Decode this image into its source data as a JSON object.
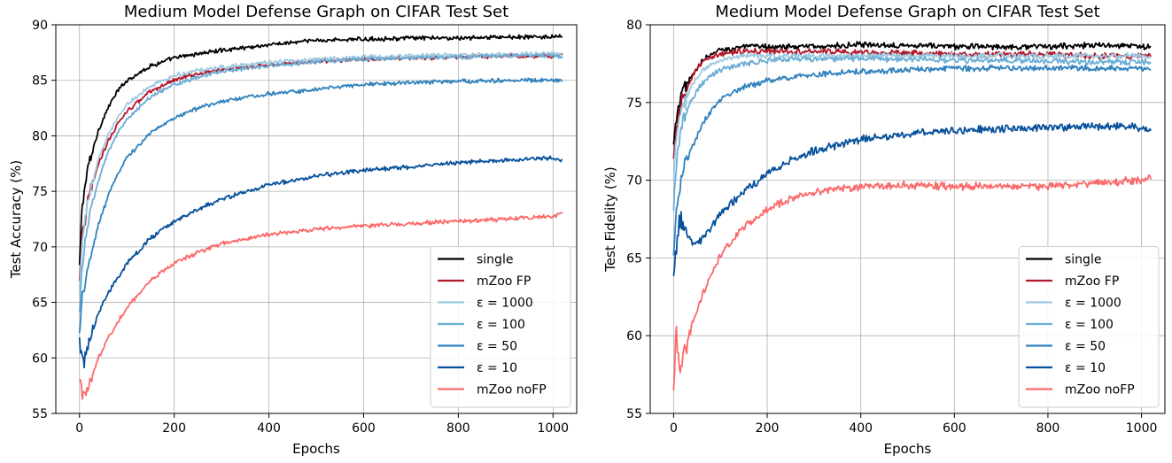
{
  "figure": {
    "left_title": "Medium Model Defense Graph on CIFAR Test Set",
    "right_title": "Medium Model Defense Graph on CIFAR Test Set"
  },
  "chart_data": [
    {
      "type": "line",
      "title": "Medium Model Defense Graph on CIFAR Test Set",
      "xlabel": "Epochs",
      "ylabel": "Test Accuracy (%)",
      "xlim": [
        -50,
        1050
      ],
      "ylim": [
        55,
        90
      ],
      "xticks": [
        0,
        200,
        400,
        600,
        800,
        1000
      ],
      "yticks": [
        55,
        60,
        65,
        70,
        75,
        80,
        85,
        90
      ],
      "grid": true,
      "legend_position": "lower right",
      "series": [
        {
          "name": "single",
          "color": "#000000",
          "x": [
            0,
            5,
            10,
            20,
            40,
            60,
            80,
            100,
            150,
            200,
            250,
            300,
            400,
            500,
            600,
            700,
            800,
            900,
            1000,
            1020
          ],
          "y": [
            68,
            73.5,
            75,
            77.5,
            80.5,
            82.5,
            84,
            85,
            86.3,
            87,
            87.4,
            87.7,
            88.2,
            88.6,
            88.7,
            88.8,
            88.8,
            88.9,
            88.9,
            88.9
          ]
        },
        {
          "name": "mZoo FP",
          "color": "#b2182b",
          "x": [
            0,
            5,
            10,
            20,
            40,
            60,
            80,
            100,
            150,
            200,
            250,
            300,
            400,
            500,
            600,
            700,
            800,
            900,
            1000,
            1020
          ],
          "y": [
            67,
            70.5,
            72,
            74.5,
            77.5,
            79.5,
            81,
            82.2,
            84,
            85,
            85.6,
            86,
            86.4,
            86.7,
            86.9,
            87,
            87.1,
            87.2,
            87.2,
            87.3
          ]
        },
        {
          "name": "ε = 1000",
          "color": "#9ecae1",
          "x": [
            0,
            5,
            10,
            20,
            40,
            60,
            80,
            100,
            150,
            200,
            250,
            300,
            400,
            500,
            600,
            700,
            800,
            900,
            1000,
            1020
          ],
          "y": [
            66,
            70,
            72,
            74.5,
            77.8,
            80,
            81.6,
            82.8,
            84.5,
            85.4,
            85.9,
            86.2,
            86.6,
            86.9,
            87.1,
            87.2,
            87.3,
            87.3,
            87.4,
            87.4
          ]
        },
        {
          "name": "ε = 100",
          "color": "#6baed6",
          "x": [
            0,
            5,
            10,
            20,
            40,
            60,
            80,
            100,
            150,
            200,
            250,
            300,
            400,
            500,
            600,
            700,
            800,
            900,
            1000,
            1020
          ],
          "y": [
            64,
            68,
            70,
            72.5,
            76,
            78.5,
            80.2,
            81.5,
            83.5,
            84.6,
            85.3,
            85.8,
            86.3,
            86.7,
            86.9,
            87,
            87.1,
            87.2,
            87.2,
            87.2
          ]
        },
        {
          "name": "ε = 50",
          "color": "#3182bd",
          "x": [
            0,
            5,
            10,
            20,
            40,
            60,
            80,
            100,
            150,
            200,
            250,
            300,
            400,
            500,
            600,
            700,
            800,
            900,
            1000,
            1020
          ],
          "y": [
            62,
            65.5,
            66.5,
            68.5,
            72,
            74.5,
            76.5,
            78,
            80.3,
            81.6,
            82.5,
            83.1,
            83.8,
            84.2,
            84.6,
            84.8,
            84.9,
            85,
            85,
            85
          ]
        },
        {
          "name": "ε = 10",
          "color": "#08519c",
          "x": [
            0,
            5,
            10,
            15,
            20,
            40,
            60,
            80,
            100,
            150,
            200,
            250,
            300,
            400,
            500,
            600,
            700,
            800,
            900,
            1000,
            1020
          ],
          "y": [
            61.5,
            60.5,
            59.8,
            60.5,
            61.5,
            64,
            65.8,
            67.2,
            68.5,
            70.8,
            72.3,
            73.4,
            74.3,
            75.6,
            76.4,
            76.9,
            77.2,
            77.6,
            77.8,
            78,
            77.8
          ]
        },
        {
          "name": "mZoo noFP",
          "color": "#fb6a6a",
          "x": [
            0,
            5,
            10,
            15,
            20,
            40,
            60,
            80,
            100,
            150,
            200,
            250,
            300,
            400,
            500,
            600,
            700,
            800,
            900,
            1000,
            1020
          ],
          "y": [
            58,
            57,
            56.3,
            56.8,
            57.5,
            60,
            61.8,
            63.2,
            64.5,
            67,
            68.5,
            69.5,
            70.3,
            71.1,
            71.6,
            71.9,
            72.1,
            72.3,
            72.5,
            72.8,
            73
          ]
        }
      ]
    },
    {
      "type": "line",
      "title": "Medium Model Defense Graph on CIFAR Test Set",
      "xlabel": "Epochs",
      "ylabel": "Test Fidelity (%)",
      "xlim": [
        -50,
        1050
      ],
      "ylim": [
        55,
        80
      ],
      "xticks": [
        0,
        200,
        400,
        600,
        800,
        1000
      ],
      "yticks": [
        55,
        60,
        65,
        70,
        75,
        80
      ],
      "grid": true,
      "legend_position": "lower right",
      "series": [
        {
          "name": "single",
          "color": "#000000",
          "x": [
            0,
            5,
            10,
            20,
            40,
            60,
            80,
            100,
            150,
            200,
            250,
            300,
            400,
            500,
            600,
            700,
            800,
            900,
            1000,
            1020
          ],
          "y": [
            72,
            73.8,
            74.5,
            75.6,
            76.8,
            77.6,
            78.1,
            78.4,
            78.6,
            78.6,
            78.6,
            78.6,
            78.7,
            78.7,
            78.6,
            78.6,
            78.6,
            78.7,
            78.6,
            78.6
          ]
        },
        {
          "name": "mZoo FP",
          "color": "#b2182b",
          "x": [
            0,
            5,
            10,
            20,
            40,
            60,
            80,
            100,
            150,
            200,
            250,
            300,
            400,
            500,
            600,
            700,
            800,
            900,
            1000,
            1020
          ],
          "y": [
            71,
            73,
            74,
            75.3,
            76.7,
            77.5,
            77.9,
            78.1,
            78.3,
            78.3,
            78.3,
            78.3,
            78.2,
            78.2,
            78.1,
            78.1,
            78.1,
            78,
            78,
            78
          ]
        },
        {
          "name": "ε = 1000",
          "color": "#9ecae1",
          "x": [
            0,
            5,
            10,
            20,
            40,
            60,
            80,
            100,
            150,
            200,
            250,
            300,
            400,
            500,
            600,
            700,
            800,
            900,
            1000,
            1020
          ],
          "y": [
            70,
            72.5,
            73.5,
            74.8,
            76.2,
            77,
            77.4,
            77.7,
            78,
            78,
            78,
            78,
            78,
            78,
            78,
            78,
            78,
            78,
            78,
            78
          ]
        },
        {
          "name": "ε = 100",
          "color": "#6baed6",
          "x": [
            0,
            5,
            10,
            20,
            40,
            60,
            80,
            100,
            150,
            200,
            250,
            300,
            400,
            500,
            600,
            700,
            800,
            900,
            1000,
            1020
          ],
          "y": [
            68,
            71,
            72.3,
            73.8,
            75.3,
            76.2,
            76.7,
            77.1,
            77.5,
            77.7,
            77.8,
            77.8,
            77.8,
            77.8,
            77.7,
            77.7,
            77.7,
            77.6,
            77.6,
            77.6
          ]
        },
        {
          "name": "ε = 50",
          "color": "#3182bd",
          "x": [
            0,
            5,
            10,
            20,
            40,
            60,
            80,
            100,
            150,
            200,
            250,
            300,
            400,
            500,
            600,
            700,
            800,
            900,
            1000,
            1020
          ],
          "y": [
            65,
            68,
            69.2,
            70.5,
            72.2,
            73.5,
            74.5,
            75.2,
            76,
            76.4,
            76.6,
            76.8,
            77,
            77.1,
            77.2,
            77.2,
            77.2,
            77.2,
            77.2,
            77.2
          ]
        },
        {
          "name": "ε = 10",
          "color": "#08519c",
          "x": [
            0,
            5,
            10,
            15,
            20,
            40,
            60,
            80,
            100,
            150,
            200,
            250,
            300,
            400,
            500,
            600,
            700,
            800,
            900,
            1000,
            1020
          ],
          "y": [
            63.5,
            65.5,
            67,
            67.5,
            67.2,
            65.8,
            66.2,
            67,
            67.8,
            69.3,
            70.4,
            71.3,
            71.9,
            72.6,
            73,
            73.2,
            73.3,
            73.4,
            73.5,
            73.4,
            73.3
          ]
        },
        {
          "name": "mZoo noFP",
          "color": "#fb6a6a",
          "x": [
            0,
            5,
            10,
            15,
            20,
            40,
            60,
            80,
            100,
            150,
            200,
            250,
            300,
            400,
            500,
            600,
            700,
            800,
            900,
            1000,
            1020
          ],
          "y": [
            56,
            61,
            58.5,
            58,
            58.5,
            60.8,
            62.5,
            64,
            65.2,
            67,
            68.1,
            68.8,
            69.2,
            69.6,
            69.7,
            69.6,
            69.6,
            69.6,
            69.8,
            70,
            70.2
          ]
        }
      ]
    }
  ]
}
